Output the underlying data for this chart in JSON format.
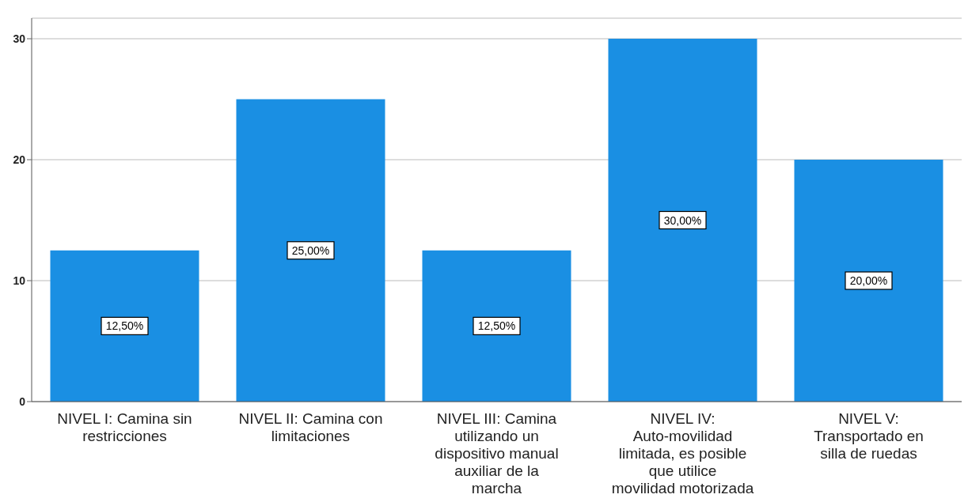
{
  "chart_data": {
    "type": "bar",
    "categories": [
      "NIVEL I: Camina sin restricciones",
      "NIVEL II: Camina con limitaciones",
      "NIVEL III: Camina utilizando un dispositivo manual auxiliar de la marcha",
      "NIVEL IV: Auto-movilidad limitada, es posible que utilice movilidad motorizada",
      "NIVEL V: Transportado en silla de ruedas"
    ],
    "values": [
      12.5,
      25,
      12.5,
      30,
      20
    ],
    "value_labels": [
      "12,50%",
      "25,00%",
      "12,50%",
      "30,00%",
      "20,00%"
    ],
    "color": "#1a8fe3",
    "ylim": [
      0,
      31.7
    ],
    "yticks": [
      0,
      10,
      20,
      30
    ],
    "grid": "y"
  }
}
